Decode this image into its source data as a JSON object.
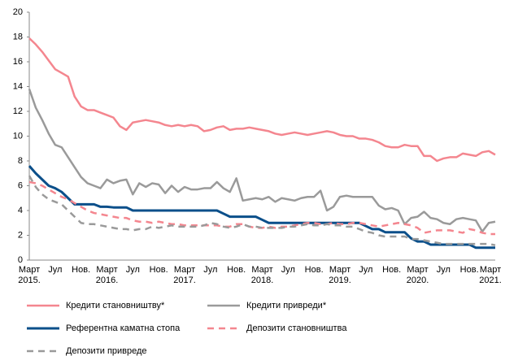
{
  "chart_data": {
    "type": "line",
    "categories": [
      "Март 2015.",
      null,
      null,
      null,
      "Јул",
      null,
      null,
      null,
      "Нов.",
      null,
      null,
      null,
      "Март 2016.",
      null,
      null,
      null,
      "Јул",
      null,
      null,
      null,
      "Нов.",
      null,
      null,
      null,
      "Март 2017.",
      null,
      null,
      null,
      "Јул",
      null,
      null,
      null,
      "Нов.",
      null,
      null,
      null,
      "Март 2018.",
      null,
      null,
      null,
      "Јул",
      null,
      null,
      null,
      "Нов.",
      null,
      null,
      null,
      "Март 2019.",
      null,
      null,
      null,
      "Јул",
      null,
      null,
      null,
      "Нов.",
      null,
      null,
      null,
      "Март 2020.",
      null,
      null,
      null,
      "Јул",
      null,
      null,
      null,
      "Нов.",
      null,
      null,
      null,
      "Март 2021."
    ],
    "ylim": [
      0,
      20
    ],
    "yticks": [
      0,
      2,
      4,
      6,
      8,
      10,
      12,
      14,
      16,
      18,
      20
    ],
    "series": [
      {
        "name": "Кредити становништву*",
        "color": "#f4868f",
        "dashed": false,
        "values": [
          17.9,
          17.4,
          16.8,
          16.1,
          15.4,
          15.1,
          14.8,
          13.2,
          12.4,
          12.1,
          12.1,
          11.9,
          11.7,
          11.5,
          10.8,
          10.5,
          11.1,
          11.2,
          11.3,
          11.2,
          11.1,
          10.9,
          10.8,
          10.9,
          10.8,
          10.9,
          10.8,
          10.4,
          10.5,
          10.7,
          10.8,
          10.5,
          10.6,
          10.6,
          10.7,
          10.6,
          10.5,
          10.4,
          10.2,
          10.1,
          10.2,
          10.3,
          10.2,
          10.1,
          10.2,
          10.3,
          10.4,
          10.3,
          10.1,
          10.0,
          10.0,
          9.8,
          9.8,
          9.7,
          9.5,
          9.2,
          9.1,
          9.1,
          9.3,
          9.2,
          9.2,
          8.4,
          8.4,
          8.0,
          8.2,
          8.3,
          8.3,
          8.6,
          8.5,
          8.4,
          8.7,
          8.8,
          8.5
        ]
      },
      {
        "name": "Кредити привреди*",
        "color": "#9a9a9a",
        "dashed": false,
        "values": [
          13.8,
          12.3,
          11.3,
          10.2,
          9.3,
          9.1,
          8.3,
          7.5,
          6.7,
          6.2,
          6.0,
          5.8,
          6.5,
          6.2,
          6.4,
          6.5,
          5.3,
          6.2,
          5.9,
          6.2,
          6.1,
          5.4,
          6.0,
          5.5,
          5.9,
          5.7,
          5.7,
          5.8,
          5.8,
          6.3,
          5.8,
          5.5,
          6.6,
          4.8,
          4.9,
          5.0,
          4.9,
          5.1,
          4.7,
          5.0,
          4.9,
          4.8,
          5.0,
          5.1,
          5.1,
          5.6,
          4.0,
          4.3,
          5.1,
          5.2,
          5.1,
          5.1,
          5.1,
          5.1,
          4.4,
          4.1,
          4.2,
          4.0,
          2.9,
          3.4,
          3.5,
          3.9,
          3.4,
          3.3,
          3.0,
          2.9,
          3.3,
          3.4,
          3.3,
          3.2,
          2.3,
          3.0,
          3.1
        ]
      },
      {
        "name": "Референтна каматна стопа",
        "color": "#0b4f8a",
        "dashed": false,
        "values": [
          7.6,
          7.0,
          6.5,
          6.0,
          5.8,
          5.5,
          5.0,
          4.5,
          4.5,
          4.5,
          4.5,
          4.3,
          4.3,
          4.25,
          4.25,
          4.25,
          4.0,
          4.0,
          4.0,
          4.0,
          4.0,
          4.0,
          4.0,
          4.0,
          4.0,
          4.0,
          4.0,
          4.0,
          4.0,
          4.0,
          3.75,
          3.5,
          3.5,
          3.5,
          3.5,
          3.5,
          3.25,
          3.0,
          3.0,
          3.0,
          3.0,
          3.0,
          3.0,
          3.0,
          3.0,
          3.0,
          3.0,
          3.0,
          3.0,
          3.0,
          3.0,
          3.0,
          2.75,
          2.5,
          2.5,
          2.25,
          2.25,
          2.25,
          2.25,
          1.75,
          1.5,
          1.5,
          1.25,
          1.25,
          1.25,
          1.25,
          1.25,
          1.25,
          1.25,
          1.0,
          1.0,
          1.0,
          1.0
        ]
      },
      {
        "name": "Депозити становништва",
        "color": "#f4868f",
        "dashed": true,
        "values": [
          6.3,
          6.2,
          6.0,
          5.7,
          5.4,
          5.1,
          4.9,
          4.6,
          4.3,
          4.0,
          3.8,
          3.7,
          3.6,
          3.5,
          3.4,
          3.4,
          3.2,
          3.1,
          3.1,
          3.0,
          3.1,
          3.0,
          2.9,
          2.9,
          2.8,
          2.8,
          2.8,
          2.8,
          2.8,
          2.8,
          2.7,
          2.7,
          2.9,
          2.9,
          2.7,
          2.6,
          2.6,
          2.7,
          2.6,
          2.7,
          2.7,
          2.8,
          2.9,
          3.0,
          3.0,
          2.9,
          2.9,
          3.0,
          2.9,
          2.9,
          3.0,
          3.0,
          2.9,
          2.8,
          2.7,
          2.8,
          2.9,
          3.0,
          2.9,
          2.8,
          2.6,
          2.2,
          2.3,
          2.4,
          2.4,
          2.4,
          2.3,
          2.2,
          2.5,
          2.4,
          2.2,
          2.1,
          2.1
        ]
      },
      {
        "name": "Депозити привреде",
        "color": "#9a9a9a",
        "dashed": true,
        "values": [
          6.8,
          5.9,
          5.3,
          4.9,
          4.7,
          4.5,
          4.0,
          3.5,
          3.0,
          2.9,
          2.9,
          2.8,
          2.7,
          2.6,
          2.5,
          2.5,
          2.4,
          2.5,
          2.5,
          2.7,
          2.6,
          2.7,
          2.8,
          2.7,
          2.7,
          2.7,
          2.7,
          2.8,
          3.0,
          2.9,
          2.7,
          2.6,
          2.7,
          2.9,
          2.7,
          2.7,
          2.6,
          2.6,
          2.6,
          2.6,
          2.7,
          2.7,
          2.8,
          2.9,
          2.8,
          2.8,
          2.9,
          2.8,
          2.8,
          2.7,
          2.7,
          2.5,
          2.3,
          2.2,
          2.0,
          1.9,
          1.9,
          1.9,
          1.9,
          1.7,
          1.7,
          1.6,
          1.5,
          1.4,
          1.3,
          1.3,
          1.3,
          1.3,
          1.3,
          1.3,
          1.3,
          1.3,
          1.2
        ]
      }
    ]
  }
}
